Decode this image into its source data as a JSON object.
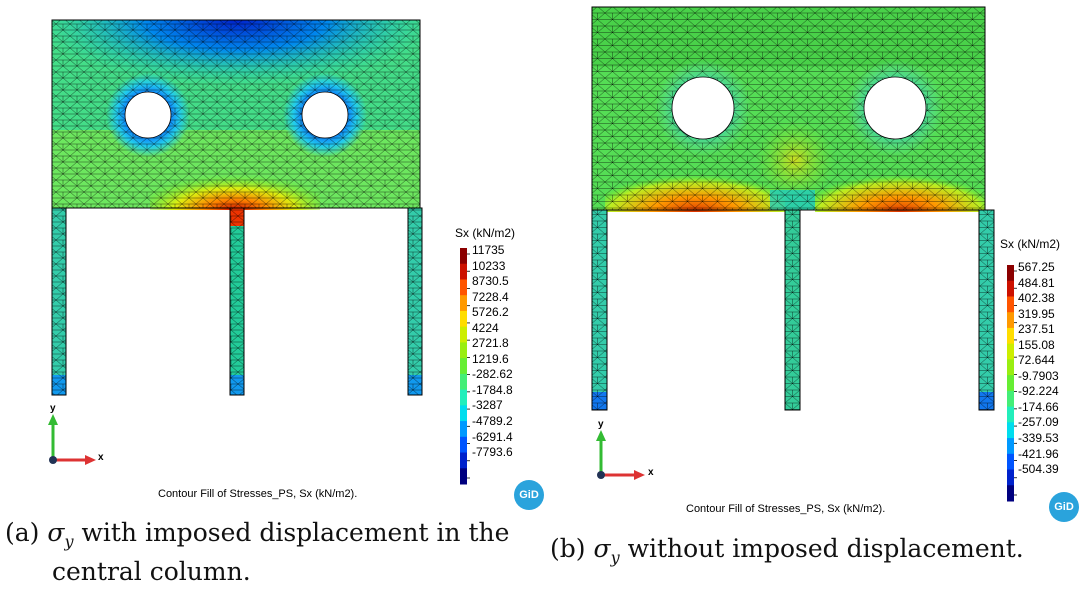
{
  "panels": [
    {
      "id": "a",
      "legend_title": "Sx (kN/m2)",
      "legend_values": [
        "11735",
        "10233",
        "8730.5",
        "7228.4",
        "5726.2",
        "4224",
        "2721.8",
        "1219.6",
        "-282.62",
        "-1784.8",
        "-3287",
        "-4789.2",
        "-6291.4",
        "-7793.6"
      ],
      "figure_caption": "Contour Fill of Stresses_PS, Sx (kN/m2).",
      "caption_label": "(a)",
      "caption_sym": "σ",
      "caption_sub": "y",
      "caption_text_1": " with imposed displacement in the",
      "caption_text_2": "central column.",
      "logo": "GiD",
      "axis_x": "x",
      "axis_y": "y"
    },
    {
      "id": "b",
      "legend_title": "Sx (kN/m2)",
      "legend_values": [
        "567.25",
        "484.81",
        "402.38",
        "319.95",
        "237.51",
        "155.08",
        "72.644",
        "-9.7903",
        "-92.224",
        "-174.66",
        "-257.09",
        "-339.53",
        "-421.96",
        "-504.39"
      ],
      "figure_caption": "Contour Fill of Stresses_PS, Sx (kN/m2).",
      "caption_label": "(b)",
      "caption_sym": "σ",
      "caption_sub": "y",
      "caption_text_1": " without imposed displacement.",
      "logo": "GiD",
      "axis_x": "x",
      "axis_y": "y"
    }
  ],
  "colormap": [
    "#00007f",
    "#0022cc",
    "#0055ff",
    "#0099ff",
    "#00ddee",
    "#22eebb",
    "#44ee77",
    "#66ee33",
    "#99ee11",
    "#ccee00",
    "#ffdd00",
    "#ff9900",
    "#ff5500",
    "#cc1100",
    "#8b0000"
  ]
}
